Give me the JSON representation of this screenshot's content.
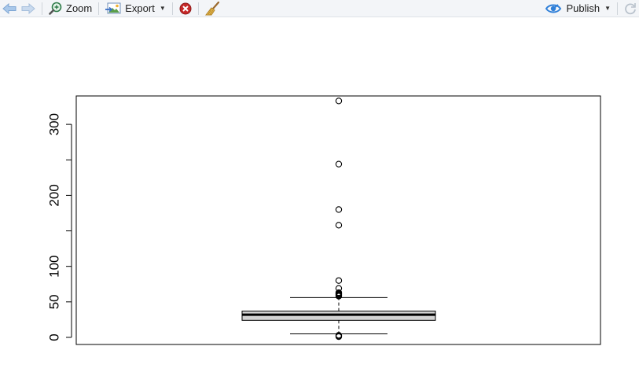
{
  "toolbar": {
    "back_icon": "arrow-left-icon",
    "forward_icon": "arrow-right-icon",
    "zoom_label": "Zoom",
    "zoom_icon": "magnifier-icon",
    "export_label": "Export",
    "export_icon": "image-export-icon",
    "clear_icon": "remove-plot-icon",
    "broom_icon": "broom-icon",
    "publish_label": "Publish",
    "publish_icon": "publish-icon",
    "refresh_icon": "refresh-icon",
    "accent": "#2f7fd8"
  },
  "chart_data": {
    "type": "boxplot",
    "orientation": "vertical",
    "title": "",
    "xlabel": "",
    "ylabel": "",
    "ylim": [
      -10,
      340
    ],
    "yticks": [
      0,
      50,
      100,
      200,
      300
    ],
    "minor_yticks": [
      150,
      250
    ],
    "box": {
      "lower_whisker": 5,
      "q1": 24,
      "median": 32,
      "q3": 37,
      "upper_whisker": 56
    },
    "outliers": [
      333,
      244,
      180,
      158,
      80,
      69,
      63,
      62,
      61,
      60,
      59,
      58,
      3,
      2,
      1
    ],
    "box_fill": "#d3d3d3",
    "grid": false
  }
}
